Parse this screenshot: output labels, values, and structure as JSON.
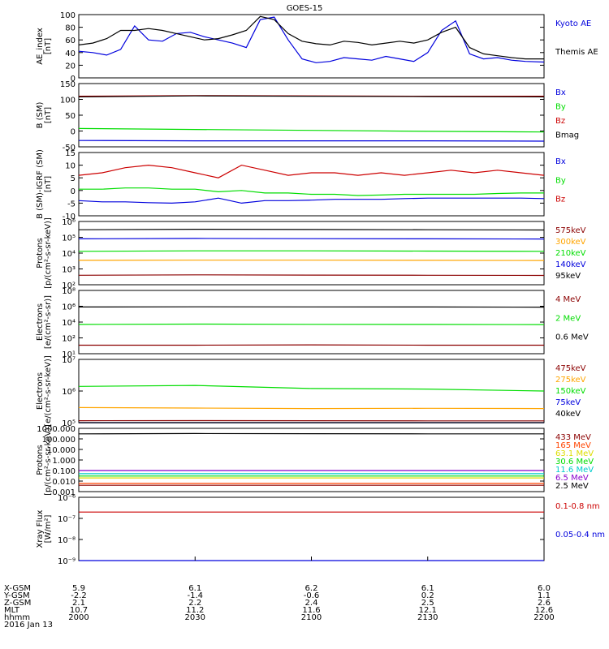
{
  "title": "GOES-15",
  "chart_data": [
    {
      "type": "line",
      "ylabel": "AE_index\n[nT]",
      "ylim": [
        0,
        100
      ],
      "yticks": [
        "100",
        "80",
        "60",
        "40",
        "20",
        "0"
      ],
      "x": [
        2000,
        2006,
        2012,
        2018,
        2024,
        2030,
        2036,
        2042,
        2048,
        2054,
        2060,
        2066,
        2072,
        2078,
        2084,
        2090,
        2096,
        2102,
        2108,
        2114,
        2120,
        2126,
        2132,
        2138,
        2144,
        2150,
        2156,
        2162,
        2168,
        2174,
        2180,
        2186,
        2192,
        2200
      ],
      "series": [
        {
          "name": "Kyoto AE",
          "color": "#0000dd",
          "values": [
            42,
            40,
            36,
            45,
            82,
            60,
            58,
            70,
            72,
            65,
            60,
            55,
            48,
            92,
            96,
            60,
            30,
            24,
            26,
            32,
            30,
            28,
            34,
            30,
            26,
            40,
            75,
            90,
            38,
            30,
            32,
            28,
            26,
            25
          ]
        },
        {
          "name": "Themis AE",
          "color": "#000000",
          "values": [
            52,
            55,
            62,
            75,
            75,
            78,
            75,
            70,
            65,
            60,
            62,
            68,
            75,
            97,
            92,
            70,
            58,
            54,
            52,
            58,
            56,
            52,
            55,
            58,
            55,
            60,
            72,
            80,
            48,
            38,
            35,
            32,
            30,
            30
          ]
        }
      ]
    },
    {
      "type": "line",
      "ylabel": "B (SM)\n[nT]",
      "ylim": [
        -50,
        150
      ],
      "yticks": [
        "150",
        "100",
        "50",
        "0",
        "-50"
      ],
      "x": [
        2000,
        2050,
        2100,
        2150,
        2200
      ],
      "series": [
        {
          "name": "Bx",
          "color": "#0000dd",
          "values": [
            -30,
            -31,
            -31,
            -31,
            -32
          ]
        },
        {
          "name": "By",
          "color": "#00dd00",
          "values": [
            8,
            5,
            2,
            -1,
            -3
          ]
        },
        {
          "name": "Bz",
          "color": "#cc0000",
          "values": [
            110,
            112,
            111,
            110,
            110
          ]
        },
        {
          "name": "Bmag",
          "color": "#000000",
          "values": [
            108,
            111,
            110,
            109,
            108
          ]
        }
      ]
    },
    {
      "type": "line",
      "ylabel": "B (SM)-IGRF (SM)\n[nT]",
      "ylim": [
        -10,
        15
      ],
      "yticks": [
        "15",
        "10",
        "5",
        "0",
        "-5",
        "-10"
      ],
      "x": [
        2000,
        2010,
        2020,
        2030,
        2040,
        2050,
        2060,
        2070,
        2080,
        2090,
        2100,
        2110,
        2120,
        2130,
        2140,
        2150,
        2160,
        2170,
        2180,
        2190,
        2200
      ],
      "series": [
        {
          "name": "Bx",
          "color": "#0000dd",
          "values": [
            -4,
            -4.5,
            -4.5,
            -4.8,
            -5,
            -4.5,
            -3,
            -5,
            -4,
            -4,
            -3.8,
            -3.5,
            -3.5,
            -3.5,
            -3.2,
            -3,
            -3,
            -3,
            -3,
            -3,
            -3.2
          ]
        },
        {
          "name": "By",
          "color": "#00dd00",
          "values": [
            0.5,
            0.5,
            1,
            1,
            0.5,
            0.5,
            -0.5,
            0,
            -1,
            -1,
            -1.5,
            -1.5,
            -2,
            -1.8,
            -1.5,
            -1.5,
            -1.5,
            -1.5,
            -1.2,
            -1,
            -1
          ]
        },
        {
          "name": "Bz",
          "color": "#cc0000",
          "values": [
            6,
            7,
            9,
            10,
            9,
            7,
            5,
            10,
            8,
            6,
            7,
            7,
            6,
            7,
            6,
            7,
            8,
            7,
            8,
            7,
            6
          ]
        }
      ]
    },
    {
      "type": "line",
      "ylabel": "Protons\n[p/(cm²-s-sr-keV)]",
      "scale": "log",
      "ylim": [
        100,
        1000000
      ],
      "yticks": [
        "10⁶",
        "10⁵",
        "10⁴",
        "10³",
        "10²"
      ],
      "x": [
        2000,
        2050,
        2100,
        2150,
        2200
      ],
      "series": [
        {
          "name": "575keV",
          "color": "#8b0000",
          "values": [
            400,
            420,
            410,
            400,
            390
          ]
        },
        {
          "name": "300keV",
          "color": "#ffa500",
          "values": [
            3500,
            3600,
            3600,
            3500,
            3400
          ]
        },
        {
          "name": "210keV",
          "color": "#00dd00",
          "values": [
            13000,
            14000,
            14000,
            13500,
            13000
          ]
        },
        {
          "name": "140keV",
          "color": "#0000dd",
          "values": [
            80000,
            85000,
            82000,
            80000,
            78000
          ]
        },
        {
          "name": "95keV",
          "color": "#000000",
          "values": [
            300000,
            320000,
            310000,
            300000,
            290000
          ]
        }
      ]
    },
    {
      "type": "line",
      "ylabel": "Electrons\n[e/(cm²-s-sr)]",
      "scale": "log",
      "ylim": [
        1,
        100000000
      ],
      "yticks": [
        "10⁸",
        "10⁶",
        "10⁴",
        "10²",
        "10¹"
      ],
      "x": [
        2000,
        2050,
        2100,
        2150,
        2200
      ],
      "series": [
        {
          "name": "4 MeV",
          "color": "#8b0000",
          "values": [
            12,
            12,
            13,
            12,
            12
          ]
        },
        {
          "name": "2 MeV",
          "color": "#00dd00",
          "values": [
            5000,
            5500,
            5200,
            5000,
            4800
          ]
        },
        {
          "name": "0.6 MeV",
          "color": "#000000",
          "values": [
            800000,
            850000,
            820000,
            800000,
            780000
          ]
        }
      ]
    },
    {
      "type": "line",
      "ylabel": "Electrons\n[e/(cm²-s-sr-keV)]",
      "scale": "log",
      "ylim": [
        100000,
        10000000
      ],
      "yticks": [
        "10⁷",
        "10⁶",
        "10⁵"
      ],
      "x": [
        2000,
        2050,
        2100,
        2150,
        2200
      ],
      "series": [
        {
          "name": "475keV",
          "color": "#8b0000",
          "values": [
            115000,
            116000,
            115000,
            114000,
            114000
          ]
        },
        {
          "name": "275keV",
          "color": "#ffa500",
          "values": [
            300000,
            290000,
            280000,
            285000,
            280000
          ]
        },
        {
          "name": "150keV",
          "color": "#00dd00",
          "values": [
            1400000,
            1500000,
            1200000,
            1150000,
            1000000
          ]
        },
        {
          "name": "75keV",
          "color": "#0000dd",
          "values": [
            55000,
            56000,
            55000,
            55000,
            55000
          ]
        },
        {
          "name": "40keV",
          "color": "#000000",
          "values": [
            20000,
            20000,
            20000,
            20000,
            20000
          ]
        }
      ]
    },
    {
      "type": "line",
      "ylabel": "Protons\n[p/(cm²-s-sr-keV)]",
      "scale": "log",
      "ylim": [
        0.001,
        1000
      ],
      "yticks": [
        "1000.000",
        "100.000",
        "10.000",
        "1.000",
        "0.100",
        "0.010",
        "0.001"
      ],
      "x": [
        2000,
        2050,
        2100,
        2150,
        2200
      ],
      "series": [
        {
          "name": "433 MeV",
          "color": "#8b0000",
          "values": [
            0.004,
            0.004,
            0.004,
            0.004,
            0.004
          ]
        },
        {
          "name": "165 MeV",
          "color": "#ff4400",
          "values": [
            0.006,
            0.006,
            0.006,
            0.006,
            0.006
          ]
        },
        {
          "name": "63.1 MeV",
          "color": "#dddd00",
          "values": [
            0.02,
            0.02,
            0.02,
            0.02,
            0.02
          ]
        },
        {
          "name": "30.6 MeV",
          "color": "#00dd00",
          "values": [
            0.03,
            0.03,
            0.03,
            0.03,
            0.03
          ]
        },
        {
          "name": "11.6 MeV",
          "color": "#00cccc",
          "values": [
            0.05,
            0.05,
            0.05,
            0.05,
            0.05
          ]
        },
        {
          "name": "6.5 MeV",
          "color": "#8800cc",
          "values": [
            0.1,
            0.1,
            0.1,
            0.1,
            0.1
          ]
        },
        {
          "name": "2.5 MeV",
          "color": "#000000",
          "values": [
            300,
            320,
            310,
            300,
            300
          ]
        }
      ]
    },
    {
      "type": "line",
      "ylabel": "Xray Flux\n[W/m²]",
      "scale": "log",
      "ylim": [
        1e-09,
        1e-06
      ],
      "yticks": [
        "10⁻⁶",
        "10⁻⁷",
        "10⁻⁸",
        "10⁻⁹"
      ],
      "x": [
        2000,
        2050,
        2100,
        2150,
        2200
      ],
      "series": [
        {
          "name": "0.1-0.8 nm",
          "color": "#cc0000",
          "values": [
            2e-07,
            2e-07,
            2e-07,
            2e-07,
            2e-07
          ]
        },
        {
          "name": "0.05-0.4 nm",
          "color": "#0000dd",
          "values": [
            1e-09,
            1e-09,
            1e-09,
            1e-09,
            1e-09
          ]
        }
      ]
    }
  ],
  "axis_table": {
    "rows": [
      {
        "label": "X-GSM",
        "values": [
          "5.9",
          "6.1",
          "6.2",
          "6.1",
          "6.0"
        ]
      },
      {
        "label": "Y-GSM",
        "values": [
          "-2.2",
          "-1.4",
          "-0.6",
          "0.2",
          "1.1"
        ]
      },
      {
        "label": "Z-GSM",
        "values": [
          "2.1",
          "2.2",
          "2.4",
          "2.5",
          "2.6"
        ]
      },
      {
        "label": "MLT",
        "values": [
          "10.7",
          "11.2",
          "11.6",
          "12.1",
          "12.6"
        ]
      },
      {
        "label": "hhmm",
        "values": [
          "2000",
          "2030",
          "2100",
          "2130",
          "2200"
        ]
      }
    ],
    "date": "2016 Jan 13"
  }
}
